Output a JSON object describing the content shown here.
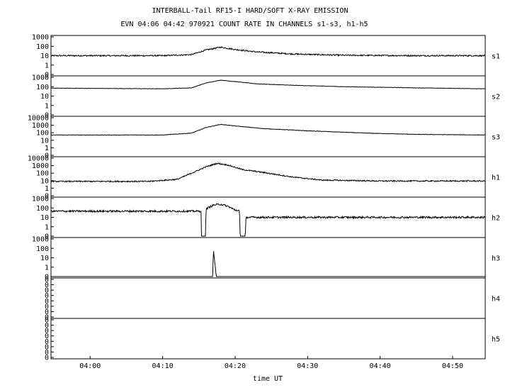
{
  "chart_data": {
    "type": "line",
    "title": "INTERBALL-Tail RF15-I HARD/SOFT X-RAY EMISSION",
    "subtitle": "EVN 04:06 04:42 970921  COUNT RATE IN CHANNELS s1-s3, h1-h5",
    "xlabel": "time UT",
    "x_range_minutes": [
      234.6,
      294.5
    ],
    "x_ticks": [
      {
        "t": 240,
        "label": "04:00"
      },
      {
        "t": 250,
        "label": "04:10"
      },
      {
        "t": 260,
        "label": "04:20"
      },
      {
        "t": 270,
        "label": "04:30"
      },
      {
        "t": 280,
        "label": "04:40"
      },
      {
        "t": 290,
        "label": "04:50"
      }
    ],
    "y_scale": "log",
    "grid": false,
    "panels": [
      {
        "channel": "s1",
        "y_ticks": [
          "1000",
          "100",
          "10",
          "1",
          "0"
        ],
        "y_range_decades": [
          -1,
          3
        ],
        "series": [
          [
            234.6,
            10
          ],
          [
            250,
            10
          ],
          [
            254,
            13
          ],
          [
            256,
            40
          ],
          [
            258,
            80
          ],
          [
            260,
            45
          ],
          [
            263,
            25
          ],
          [
            268,
            15
          ],
          [
            275,
            11
          ],
          [
            285,
            10
          ],
          [
            294.5,
            10
          ]
        ],
        "noise_decades": 0.07
      },
      {
        "channel": "s2",
        "y_ticks": [
          "1000",
          "100",
          "10",
          "1",
          "0"
        ],
        "y_range_decades": [
          -1,
          3
        ],
        "series": [
          [
            234.6,
            70
          ],
          [
            250,
            60
          ],
          [
            254,
            75
          ],
          [
            256,
            250
          ],
          [
            258,
            500
          ],
          [
            260,
            350
          ],
          [
            263,
            200
          ],
          [
            268,
            140
          ],
          [
            275,
            100
          ],
          [
            285,
            75
          ],
          [
            294.5,
            60
          ]
        ],
        "noise_decades": 0.02
      },
      {
        "channel": "s3",
        "y_ticks": [
          "10000",
          "1000",
          "100",
          "10",
          "1",
          "0"
        ],
        "y_range_decades": [
          -1,
          4
        ],
        "series": [
          [
            234.6,
            50
          ],
          [
            250,
            50
          ],
          [
            254,
            90
          ],
          [
            256,
            500
          ],
          [
            258,
            1300
          ],
          [
            260,
            800
          ],
          [
            264,
            350
          ],
          [
            270,
            180
          ],
          [
            278,
            90
          ],
          [
            285,
            60
          ],
          [
            294.5,
            50
          ]
        ],
        "noise_decades": 0.03
      },
      {
        "channel": "h1",
        "y_ticks": [
          "10000",
          "1000",
          "100",
          "10",
          "1",
          "0"
        ],
        "y_range_decades": [
          -1,
          4
        ],
        "series": [
          [
            234.6,
            8
          ],
          [
            248,
            8
          ],
          [
            252,
            15
          ],
          [
            254,
            100
          ],
          [
            256,
            700
          ],
          [
            257.5,
            2000
          ],
          [
            259,
            1200
          ],
          [
            261,
            300
          ],
          [
            264,
            120
          ],
          [
            268,
            30
          ],
          [
            272,
            12
          ],
          [
            280,
            9
          ],
          [
            294.5,
            9
          ]
        ],
        "noise_decades": 0.08
      },
      {
        "channel": "h2",
        "y_ticks": [
          "1000",
          "100",
          "10",
          "1",
          "0"
        ],
        "y_range_decades": [
          -1,
          3
        ],
        "series": [
          [
            234.6,
            45
          ],
          [
            255.3,
            45
          ],
          [
            255.35,
            0.1
          ],
          [
            255.9,
            0.1
          ],
          [
            256.0,
            80
          ],
          [
            257,
            200
          ],
          [
            258,
            250
          ],
          [
            259,
            150
          ],
          [
            260,
            60
          ],
          [
            260.6,
            50
          ],
          [
            260.7,
            0.1
          ],
          [
            261.4,
            0.1
          ],
          [
            261.5,
            10
          ],
          [
            294.5,
            10
          ]
        ],
        "noise_decades": 0.1
      },
      {
        "channel": "h3",
        "y_ticks": [
          "1000",
          "100",
          "10",
          "1",
          "0"
        ],
        "y_range_decades": [
          -1,
          3
        ],
        "series": [
          [
            234.6,
            0.1
          ],
          [
            256.9,
            0.1
          ],
          [
            257.0,
            80
          ],
          [
            257.4,
            0.1
          ],
          [
            294.5,
            0.1
          ]
        ],
        "noise_decades": 0.0
      },
      {
        "channel": "h4",
        "y_ticks": [
          "0",
          "0",
          "0",
          "0",
          "0",
          "0",
          "0",
          "0"
        ],
        "series": [],
        "noise_decades": 0.0
      },
      {
        "channel": "h5",
        "y_ticks": [
          "0",
          "0",
          "0",
          "0",
          "0",
          "0",
          "0",
          "0"
        ],
        "series": [],
        "noise_decades": 0.0
      }
    ]
  }
}
